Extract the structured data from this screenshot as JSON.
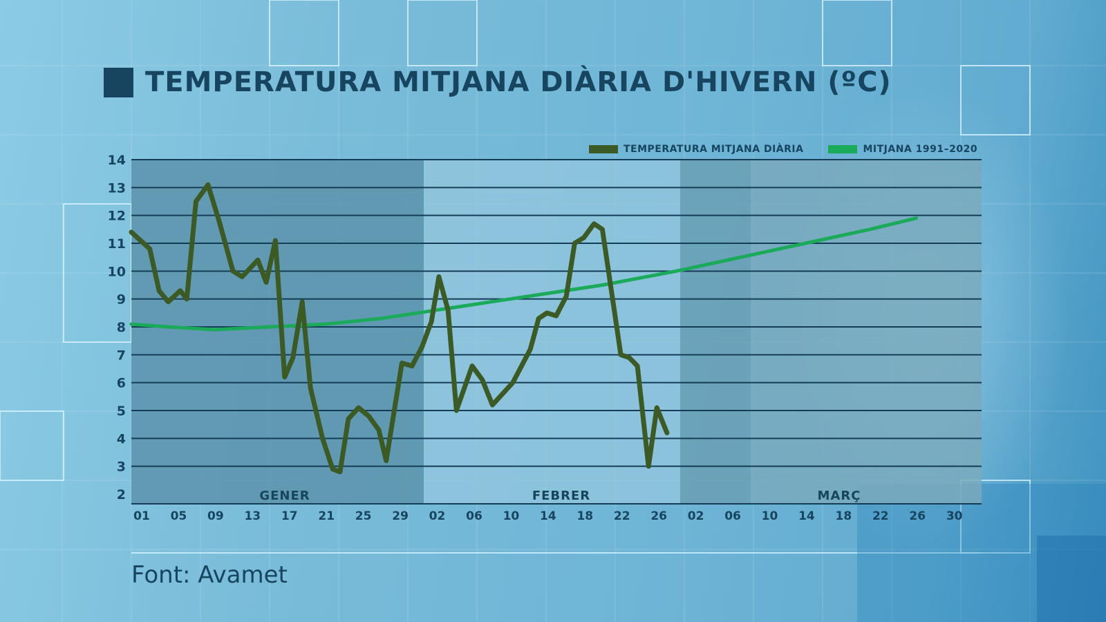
{
  "title": "TEMPERATURA MITJANA DIÀRIA D'HIVERN (ºC)",
  "source": "Font: Avamet",
  "colors": {
    "title": "#17445e",
    "daily_line": "#3c5a26",
    "normal_line": "#1aaa5a",
    "jan_shade": "#5d93ab",
    "feb_shade": "#95c7de",
    "mar_shade": "#6a9db2",
    "gridline": "#143d55"
  },
  "legend": [
    {
      "label": "TEMPERATURA MITJANA DIÀRIA",
      "color": "#3c5a26"
    },
    {
      "label": "MITJANA 1991–2020",
      "color": "#1aaa5a"
    }
  ],
  "chart_data": {
    "type": "line",
    "title": "TEMPERATURA MITJANA DIÀRIA D'HIVERN (ºC)",
    "xlabel": "",
    "ylabel": "ºC",
    "ylim": [
      2,
      14
    ],
    "yticks": [
      2,
      3,
      4,
      5,
      6,
      7,
      8,
      9,
      10,
      11,
      12,
      13,
      14
    ],
    "grid": true,
    "legend_position": "top-right",
    "months": [
      {
        "label": "GENER",
        "start_index": 0,
        "days": 31
      },
      {
        "label": "FEBRER",
        "start_index": 31,
        "days": 28
      },
      {
        "label": "MARÇ",
        "start_index": 59,
        "days": 31
      }
    ],
    "xtick_labels": [
      "01",
      "05",
      "09",
      "13",
      "17",
      "21",
      "25",
      "29",
      "02",
      "06",
      "10",
      "14",
      "18",
      "22",
      "26",
      "02",
      "06",
      "10",
      "14",
      "18",
      "22",
      "26",
      "30"
    ],
    "xtick_indices": [
      0,
      4,
      8,
      12,
      16,
      20,
      24,
      28,
      32,
      36,
      40,
      44,
      48,
      52,
      56,
      60,
      64,
      68,
      72,
      76,
      80,
      84,
      88
    ],
    "series": [
      {
        "name": "TEMPERATURA MITJANA DIÀRIA",
        "points": [
          [
            0,
            11.4
          ],
          [
            2,
            10.8
          ],
          [
            3,
            9.3
          ],
          [
            4,
            8.9
          ],
          [
            5.3,
            9.3
          ],
          [
            6,
            9.0
          ],
          [
            7,
            12.5
          ],
          [
            8.3,
            13.1
          ],
          [
            9.5,
            11.8
          ],
          [
            11,
            10.0
          ],
          [
            12,
            9.8
          ],
          [
            13.7,
            10.4
          ],
          [
            14.6,
            9.6
          ],
          [
            15.6,
            11.1
          ],
          [
            16.6,
            6.2
          ],
          [
            17.5,
            6.9
          ],
          [
            18.5,
            8.9
          ],
          [
            19.4,
            5.8
          ],
          [
            20.7,
            4.0
          ],
          [
            21.8,
            2.9
          ],
          [
            22.6,
            2.8
          ],
          [
            23.5,
            4.7
          ],
          [
            24.6,
            5.1
          ],
          [
            25.7,
            4.8
          ],
          [
            26.8,
            4.3
          ],
          [
            27.6,
            3.2
          ],
          [
            29.3,
            6.7
          ],
          [
            30.4,
            6.6
          ],
          [
            31.5,
            7.3
          ],
          [
            32.5,
            8.2
          ],
          [
            33.3,
            9.8
          ],
          [
            34.3,
            8.6
          ],
          [
            35.2,
            5.0
          ],
          [
            36.9,
            6.6
          ],
          [
            38,
            6.1
          ],
          [
            39.1,
            5.2
          ],
          [
            40.2,
            5.6
          ],
          [
            41.3,
            6.0
          ],
          [
            43.2,
            7.2
          ],
          [
            44.1,
            8.3
          ],
          [
            45,
            8.5
          ],
          [
            46,
            8.4
          ],
          [
            47.1,
            9.1
          ],
          [
            48,
            11.0
          ],
          [
            49,
            11.2
          ],
          [
            50.1,
            11.7
          ],
          [
            51,
            11.5
          ],
          [
            53,
            7.0
          ],
          [
            53.9,
            6.9
          ],
          [
            54.8,
            6.6
          ],
          [
            56,
            3.0
          ],
          [
            56.9,
            5.1
          ],
          [
            58,
            4.2
          ]
        ]
      },
      {
        "name": "MITJANA 1991–2020",
        "points": [
          [
            0,
            8.1
          ],
          [
            4,
            8.0
          ],
          [
            9,
            7.9
          ],
          [
            15,
            8.0
          ],
          [
            21,
            8.1
          ],
          [
            27,
            8.3
          ],
          [
            33,
            8.6
          ],
          [
            39,
            8.9
          ],
          [
            45,
            9.2
          ],
          [
            51,
            9.5
          ],
          [
            59,
            10.0
          ],
          [
            66,
            10.5
          ],
          [
            73,
            11.0
          ],
          [
            80,
            11.5
          ],
          [
            85,
            11.9
          ]
        ]
      }
    ]
  }
}
